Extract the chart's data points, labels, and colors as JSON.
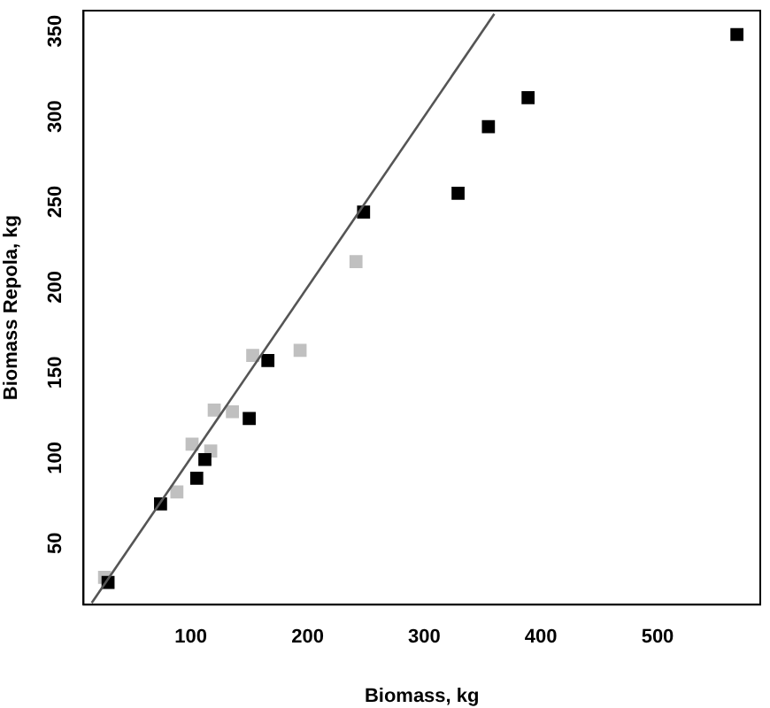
{
  "chart_data": {
    "type": "scatter",
    "xlabel": "Biomass, kg",
    "ylabel": "Biomass Repola, kg",
    "xlim": [
      8,
      588
    ],
    "ylim": [
      14,
      362
    ],
    "xticks": [
      100,
      200,
      300,
      400,
      500
    ],
    "yticks": [
      50,
      100,
      150,
      200,
      250,
      300,
      350
    ],
    "grid": false,
    "legend": false,
    "marker": "square",
    "series": [
      {
        "color": "#c0c0c0",
        "x": [
          241.5,
          193.6,
          153,
          135.6,
          120,
          117,
          101,
          88,
          26
        ],
        "values": [
          215,
          163,
          160,
          127,
          128,
          104,
          108,
          80,
          30
        ]
      },
      {
        "color": "#000000",
        "x": [
          568,
          389,
          355,
          329,
          248,
          166,
          150,
          112,
          105,
          74,
          29
        ],
        "values": [
          348,
          311,
          294,
          255,
          244,
          157,
          123,
          99,
          88,
          73,
          27
        ]
      },
      {
        "type": "line",
        "color": "#555555",
        "marker": "none",
        "line_style": "solid",
        "x": [
          15,
          360
        ],
        "values": [
          15,
          360
        ]
      }
    ]
  }
}
